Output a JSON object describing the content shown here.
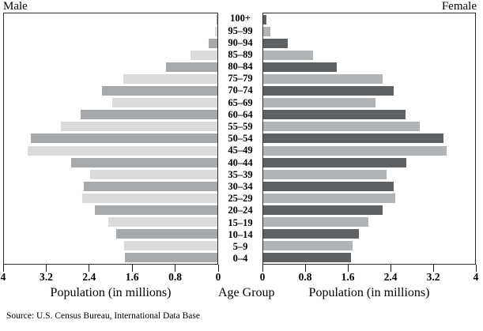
{
  "labels": {
    "male": "Male",
    "female": "Female",
    "age_group": "Age Group"
  },
  "axis": {
    "left": {
      "title": "Population (in millions)",
      "ticks": [
        "4",
        "3.2",
        "2.4",
        "1.6",
        "0.8",
        "0"
      ]
    },
    "right": {
      "title": "Population (in millions)",
      "ticks": [
        "0",
        "0.8",
        "1.6",
        "2.4",
        "3.2",
        "4"
      ]
    }
  },
  "source": {
    "text": "Source: U.S. Census Bureau, International Data Base"
  },
  "colors": {
    "male_dark": "#a7aaac",
    "male_light": "#d9dbdd",
    "female_dark": "#5d6163",
    "female_light": "#b1b4b6",
    "border": "#2f2f2f"
  },
  "chart_data": {
    "type": "bar",
    "subtype": "population-pyramid",
    "title": "",
    "xlabel": "Population (in millions)",
    "ylabel": "Age Group",
    "xlim": [
      0,
      4
    ],
    "grid": false,
    "categories": [
      "100+",
      "95–99",
      "90–94",
      "85–89",
      "80–84",
      "75–79",
      "70–74",
      "65–69",
      "60–64",
      "55–59",
      "50–54",
      "45–49",
      "40–44",
      "35–39",
      "30–34",
      "25–29",
      "20–24",
      "15–19",
      "10–14",
      "5–9",
      "0–4"
    ],
    "series": [
      {
        "name": "Male",
        "side": "left",
        "values": [
          0.02,
          0.05,
          0.16,
          0.5,
          0.96,
          1.76,
          2.16,
          1.97,
          2.56,
          2.93,
          3.49,
          3.56,
          2.74,
          2.38,
          2.5,
          2.54,
          2.29,
          2.04,
          1.9,
          1.75,
          1.74
        ]
      },
      {
        "name": "Female",
        "side": "right",
        "values": [
          0.06,
          0.13,
          0.47,
          0.94,
          1.39,
          2.25,
          2.46,
          2.12,
          2.69,
          2.96,
          3.4,
          3.46,
          2.7,
          2.33,
          2.46,
          2.49,
          2.26,
          1.99,
          1.81,
          1.68,
          1.66
        ]
      }
    ]
  }
}
